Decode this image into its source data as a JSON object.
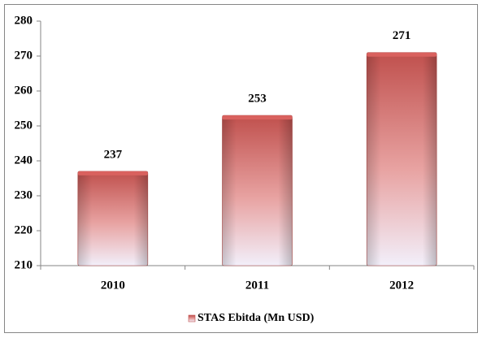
{
  "chart_data": {
    "type": "bar",
    "categories": [
      "2010",
      "2011",
      "2012"
    ],
    "series": [
      {
        "name": "STAS Ebitda (Mn USD)",
        "color": "#c0504d",
        "values": [
          237,
          253,
          271
        ]
      }
    ],
    "ylim": [
      210,
      280
    ],
    "yticks": [
      210,
      220,
      230,
      240,
      250,
      260,
      270,
      280
    ],
    "legend": "bottom",
    "grid": false
  }
}
